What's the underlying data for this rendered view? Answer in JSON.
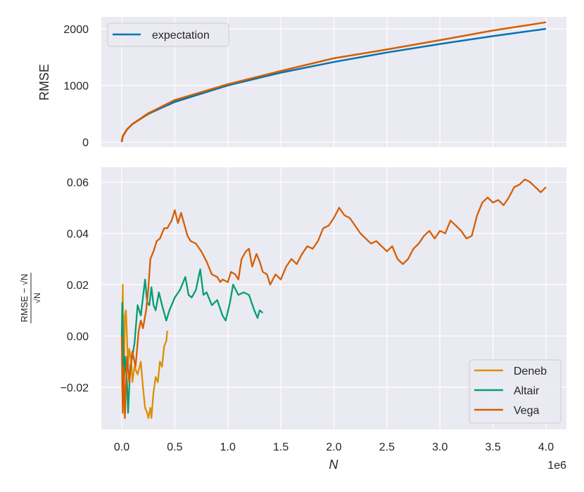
{
  "chart_data": [
    {
      "type": "line",
      "title": "",
      "xlabel": "",
      "ylabel": "RMSE",
      "xlim": [
        -0.2,
        4.14
      ],
      "ylim": [
        -90,
        2200
      ],
      "x_scale_note": "shared x axis, 1e6",
      "yticks": [
        0,
        1000,
        2000
      ],
      "ytick_labels": [
        "0",
        "1000",
        "2000"
      ],
      "grid": true,
      "legend": {
        "position": "upper left",
        "entries": [
          "expectation"
        ]
      },
      "series": [
        {
          "name": "expectation",
          "color": "#0173b2",
          "x": [
            0,
            0.01,
            0.05,
            0.1,
            0.25,
            0.5,
            1.0,
            1.5,
            2.0,
            2.5,
            3.0,
            3.5,
            4.0
          ],
          "values": [
            0,
            100,
            224,
            316,
            500,
            707,
            1000,
            1225,
            1414,
            1581,
            1732,
            1871,
            2000
          ]
        },
        {
          "name": "Deneb",
          "color": "#de8f05",
          "x": [
            0,
            0.01,
            0.05,
            0.1,
            0.25,
            0.43
          ],
          "values": [
            0,
            102,
            224,
            315,
            492,
            657
          ]
        },
        {
          "name": "Altair",
          "color": "#029e73",
          "x": [
            0,
            0.01,
            0.05,
            0.1,
            0.25,
            0.5,
            1.0,
            1.33
          ],
          "values": [
            0,
            101,
            222,
            316,
            505,
            715,
            1015,
            1165
          ]
        },
        {
          "name": "Vega",
          "color": "#d55e00",
          "x": [
            0,
            0.01,
            0.05,
            0.1,
            0.25,
            0.5,
            1.0,
            1.5,
            2.0,
            2.5,
            3.0,
            3.5,
            4.0
          ],
          "values": [
            0,
            97,
            222,
            313,
            507,
            742,
            1021,
            1255,
            1479,
            1635,
            1800,
            1970,
            2115
          ]
        }
      ]
    },
    {
      "type": "line",
      "title": "",
      "xlabel": "N",
      "x_offset_label": "1e6",
      "ylabel": "(RMSE − √N) / √N",
      "xlim": [
        -0.2,
        4.14
      ],
      "ylim": [
        -0.036,
        0.0655
      ],
      "xticks": [
        0.0,
        0.5,
        1.0,
        1.5,
        2.0,
        2.5,
        3.0,
        3.5,
        4.0
      ],
      "xtick_labels": [
        "0.0",
        "0.5",
        "1.0",
        "1.5",
        "2.0",
        "2.5",
        "3.0",
        "3.5",
        "4.0"
      ],
      "yticks": [
        -0.02,
        0.0,
        0.02,
        0.04,
        0.06
      ],
      "ytick_labels": [
        "−0.02",
        "0.00",
        "0.02",
        "0.04",
        "0.06"
      ],
      "grid": true,
      "legend": {
        "position": "lower right",
        "entries": [
          "Deneb",
          "Altair",
          "Vega"
        ]
      },
      "series": [
        {
          "name": "Deneb",
          "color": "#de8f05",
          "x": [
            0,
            0.005,
            0.01,
            0.015,
            0.02,
            0.03,
            0.04,
            0.06,
            0.07,
            0.09,
            0.1,
            0.12,
            0.15,
            0.18,
            0.2,
            0.22,
            0.24,
            0.25,
            0.27,
            0.28,
            0.3,
            0.32,
            0.34,
            0.36,
            0.38,
            0.4,
            0.42,
            0.43
          ],
          "values": [
            0,
            0.005,
            0.02,
            -0.005,
            -0.025,
            0.008,
            0.01,
            -0.012,
            -0.005,
            -0.01,
            -0.018,
            -0.012,
            -0.015,
            -0.01,
            -0.02,
            -0.028,
            -0.03,
            -0.032,
            -0.028,
            -0.032,
            -0.022,
            -0.016,
            -0.018,
            -0.01,
            -0.012,
            -0.004,
            -0.002,
            0.002
          ]
        },
        {
          "name": "Altair",
          "color": "#029e73",
          "x": [
            0,
            0.005,
            0.01,
            0.02,
            0.03,
            0.05,
            0.06,
            0.08,
            0.1,
            0.12,
            0.15,
            0.18,
            0.2,
            0.22,
            0.24,
            0.26,
            0.28,
            0.3,
            0.32,
            0.35,
            0.38,
            0.42,
            0.45,
            0.5,
            0.55,
            0.6,
            0.63,
            0.66,
            0.7,
            0.74,
            0.77,
            0.8,
            0.85,
            0.9,
            0.95,
            0.98,
            1.02,
            1.05,
            1.1,
            1.15,
            1.2,
            1.25,
            1.28,
            1.3,
            1.33
          ],
          "values": [
            0,
            0.013,
            0.003,
            -0.02,
            -0.008,
            -0.018,
            -0.03,
            -0.012,
            -0.008,
            -0.003,
            0.012,
            0.008,
            0.015,
            0.022,
            0.013,
            0.012,
            0.019,
            0.012,
            0.01,
            0.017,
            0.012,
            0.006,
            0.01,
            0.015,
            0.018,
            0.023,
            0.016,
            0.015,
            0.018,
            0.026,
            0.016,
            0.017,
            0.012,
            0.014,
            0.008,
            0.006,
            0.013,
            0.02,
            0.016,
            0.017,
            0.016,
            0.01,
            0.007,
            0.01,
            0.009
          ]
        },
        {
          "name": "Vega",
          "color": "#d55e00",
          "x": [
            0,
            0.005,
            0.01,
            0.02,
            0.03,
            0.05,
            0.07,
            0.1,
            0.13,
            0.16,
            0.18,
            0.2,
            0.23,
            0.25,
            0.27,
            0.3,
            0.33,
            0.36,
            0.4,
            0.43,
            0.47,
            0.5,
            0.53,
            0.56,
            0.58,
            0.62,
            0.65,
            0.7,
            0.75,
            0.8,
            0.85,
            0.9,
            0.93,
            0.95,
            1.0,
            1.03,
            1.07,
            1.1,
            1.13,
            1.17,
            1.2,
            1.23,
            1.27,
            1.3,
            1.33,
            1.37,
            1.4,
            1.45,
            1.5,
            1.55,
            1.6,
            1.65,
            1.7,
            1.75,
            1.8,
            1.85,
            1.9,
            1.95,
            2.0,
            2.05,
            2.1,
            2.15,
            2.2,
            2.25,
            2.3,
            2.35,
            2.4,
            2.45,
            2.5,
            2.55,
            2.6,
            2.65,
            2.7,
            2.75,
            2.8,
            2.85,
            2.9,
            2.95,
            3.0,
            3.05,
            3.1,
            3.15,
            3.2,
            3.25,
            3.3,
            3.35,
            3.4,
            3.45,
            3.5,
            3.55,
            3.6,
            3.65,
            3.7,
            3.75,
            3.8,
            3.85,
            3.9,
            3.95,
            4.0
          ],
          "values": [
            0,
            -0.02,
            -0.03,
            -0.012,
            -0.032,
            -0.008,
            -0.018,
            -0.006,
            -0.012,
            0.002,
            0.006,
            0.003,
            0.01,
            0.018,
            0.03,
            0.033,
            0.037,
            0.038,
            0.042,
            0.042,
            0.045,
            0.049,
            0.044,
            0.048,
            0.045,
            0.039,
            0.037,
            0.036,
            0.033,
            0.029,
            0.024,
            0.023,
            0.021,
            0.022,
            0.021,
            0.025,
            0.024,
            0.022,
            0.03,
            0.033,
            0.034,
            0.027,
            0.032,
            0.029,
            0.025,
            0.024,
            0.02,
            0.024,
            0.022,
            0.027,
            0.03,
            0.028,
            0.032,
            0.035,
            0.034,
            0.037,
            0.042,
            0.043,
            0.046,
            0.05,
            0.047,
            0.046,
            0.043,
            0.04,
            0.038,
            0.036,
            0.037,
            0.035,
            0.033,
            0.035,
            0.03,
            0.028,
            0.03,
            0.034,
            0.036,
            0.039,
            0.041,
            0.038,
            0.041,
            0.04,
            0.045,
            0.043,
            0.041,
            0.038,
            0.039,
            0.047,
            0.052,
            0.054,
            0.052,
            0.053,
            0.051,
            0.054,
            0.058,
            0.059,
            0.061,
            0.06,
            0.058,
            0.056,
            0.058
          ]
        }
      ]
    }
  ],
  "labels": {
    "top_ylabel": "RMSE",
    "bottom_ylabel_num": "RMSE − √N",
    "bottom_ylabel_den": "√N",
    "xlabel": "N",
    "offset": "1e6",
    "top_legend": [
      "expectation"
    ],
    "bottom_legend": [
      "Deneb",
      "Altair",
      "Vega"
    ]
  }
}
